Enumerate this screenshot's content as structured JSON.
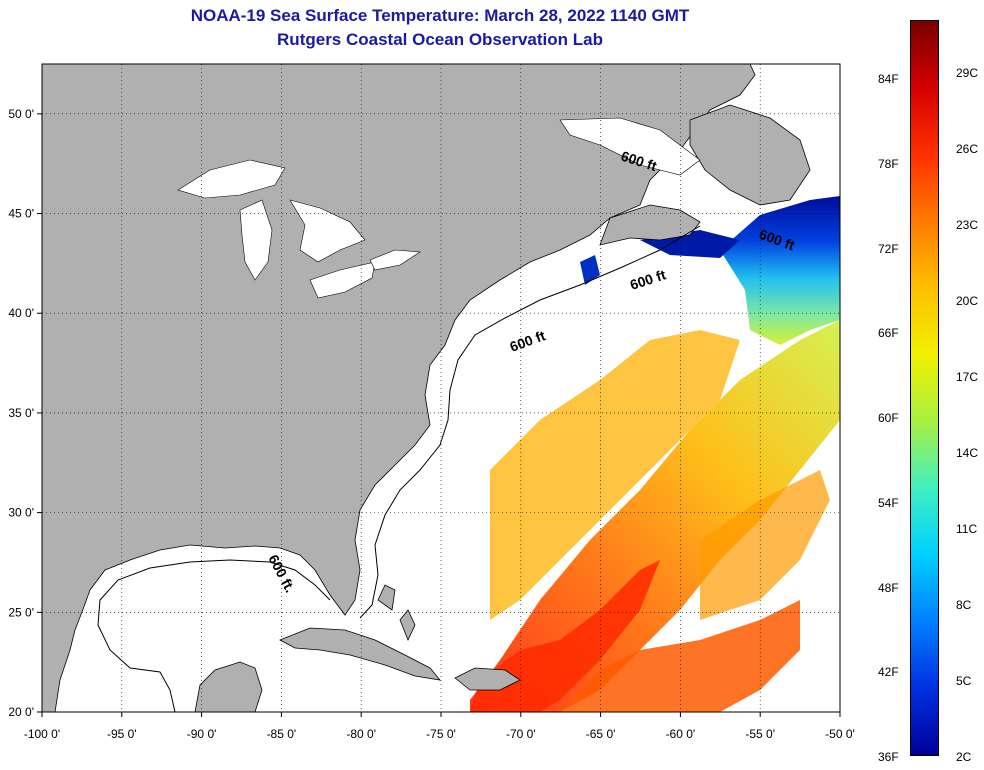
{
  "title": {
    "line1": "NOAA-19 Sea Surface Temperature:  March 28, 2022 1140 GMT",
    "line2": "Rutgers Coastal Ocean Observation Lab"
  },
  "map": {
    "lon_range": [
      -100,
      -50
    ],
    "lat_range": [
      20,
      52.5
    ],
    "lon_ticks": [
      "-100 0'",
      "-95 0'",
      "-90 0'",
      "-85 0'",
      "-80 0'",
      "-75 0'",
      "-70 0'",
      "-65 0'",
      "-60 0'",
      "-55 0'",
      "-50 0'"
    ],
    "lat_ticks": [
      "50 0'",
      "45 0'",
      "40 0'",
      "35 0'",
      "30 0'",
      "25 0'",
      "20 0'"
    ],
    "contour_label": "600 ft",
    "contour_label_gulf": "600 ft.",
    "land_color": "#b0b0b0",
    "grid": "dotted"
  },
  "colorbar": {
    "fahrenheit": [
      "84F",
      "78F",
      "72F",
      "66F",
      "60F",
      "54F",
      "48F",
      "42F",
      "36F"
    ],
    "celsius": [
      "29C",
      "26C",
      "23C",
      "20C",
      "17C",
      "14C",
      "11C",
      "8C",
      "5C",
      "2C"
    ],
    "colors": [
      "#7a0000",
      "#d40000",
      "#ff3000",
      "#ff7a00",
      "#ffbf00",
      "#f0f000",
      "#a8f040",
      "#40f0c0",
      "#00d0ff",
      "#0080ff",
      "#0030e0",
      "#00009a"
    ]
  }
}
